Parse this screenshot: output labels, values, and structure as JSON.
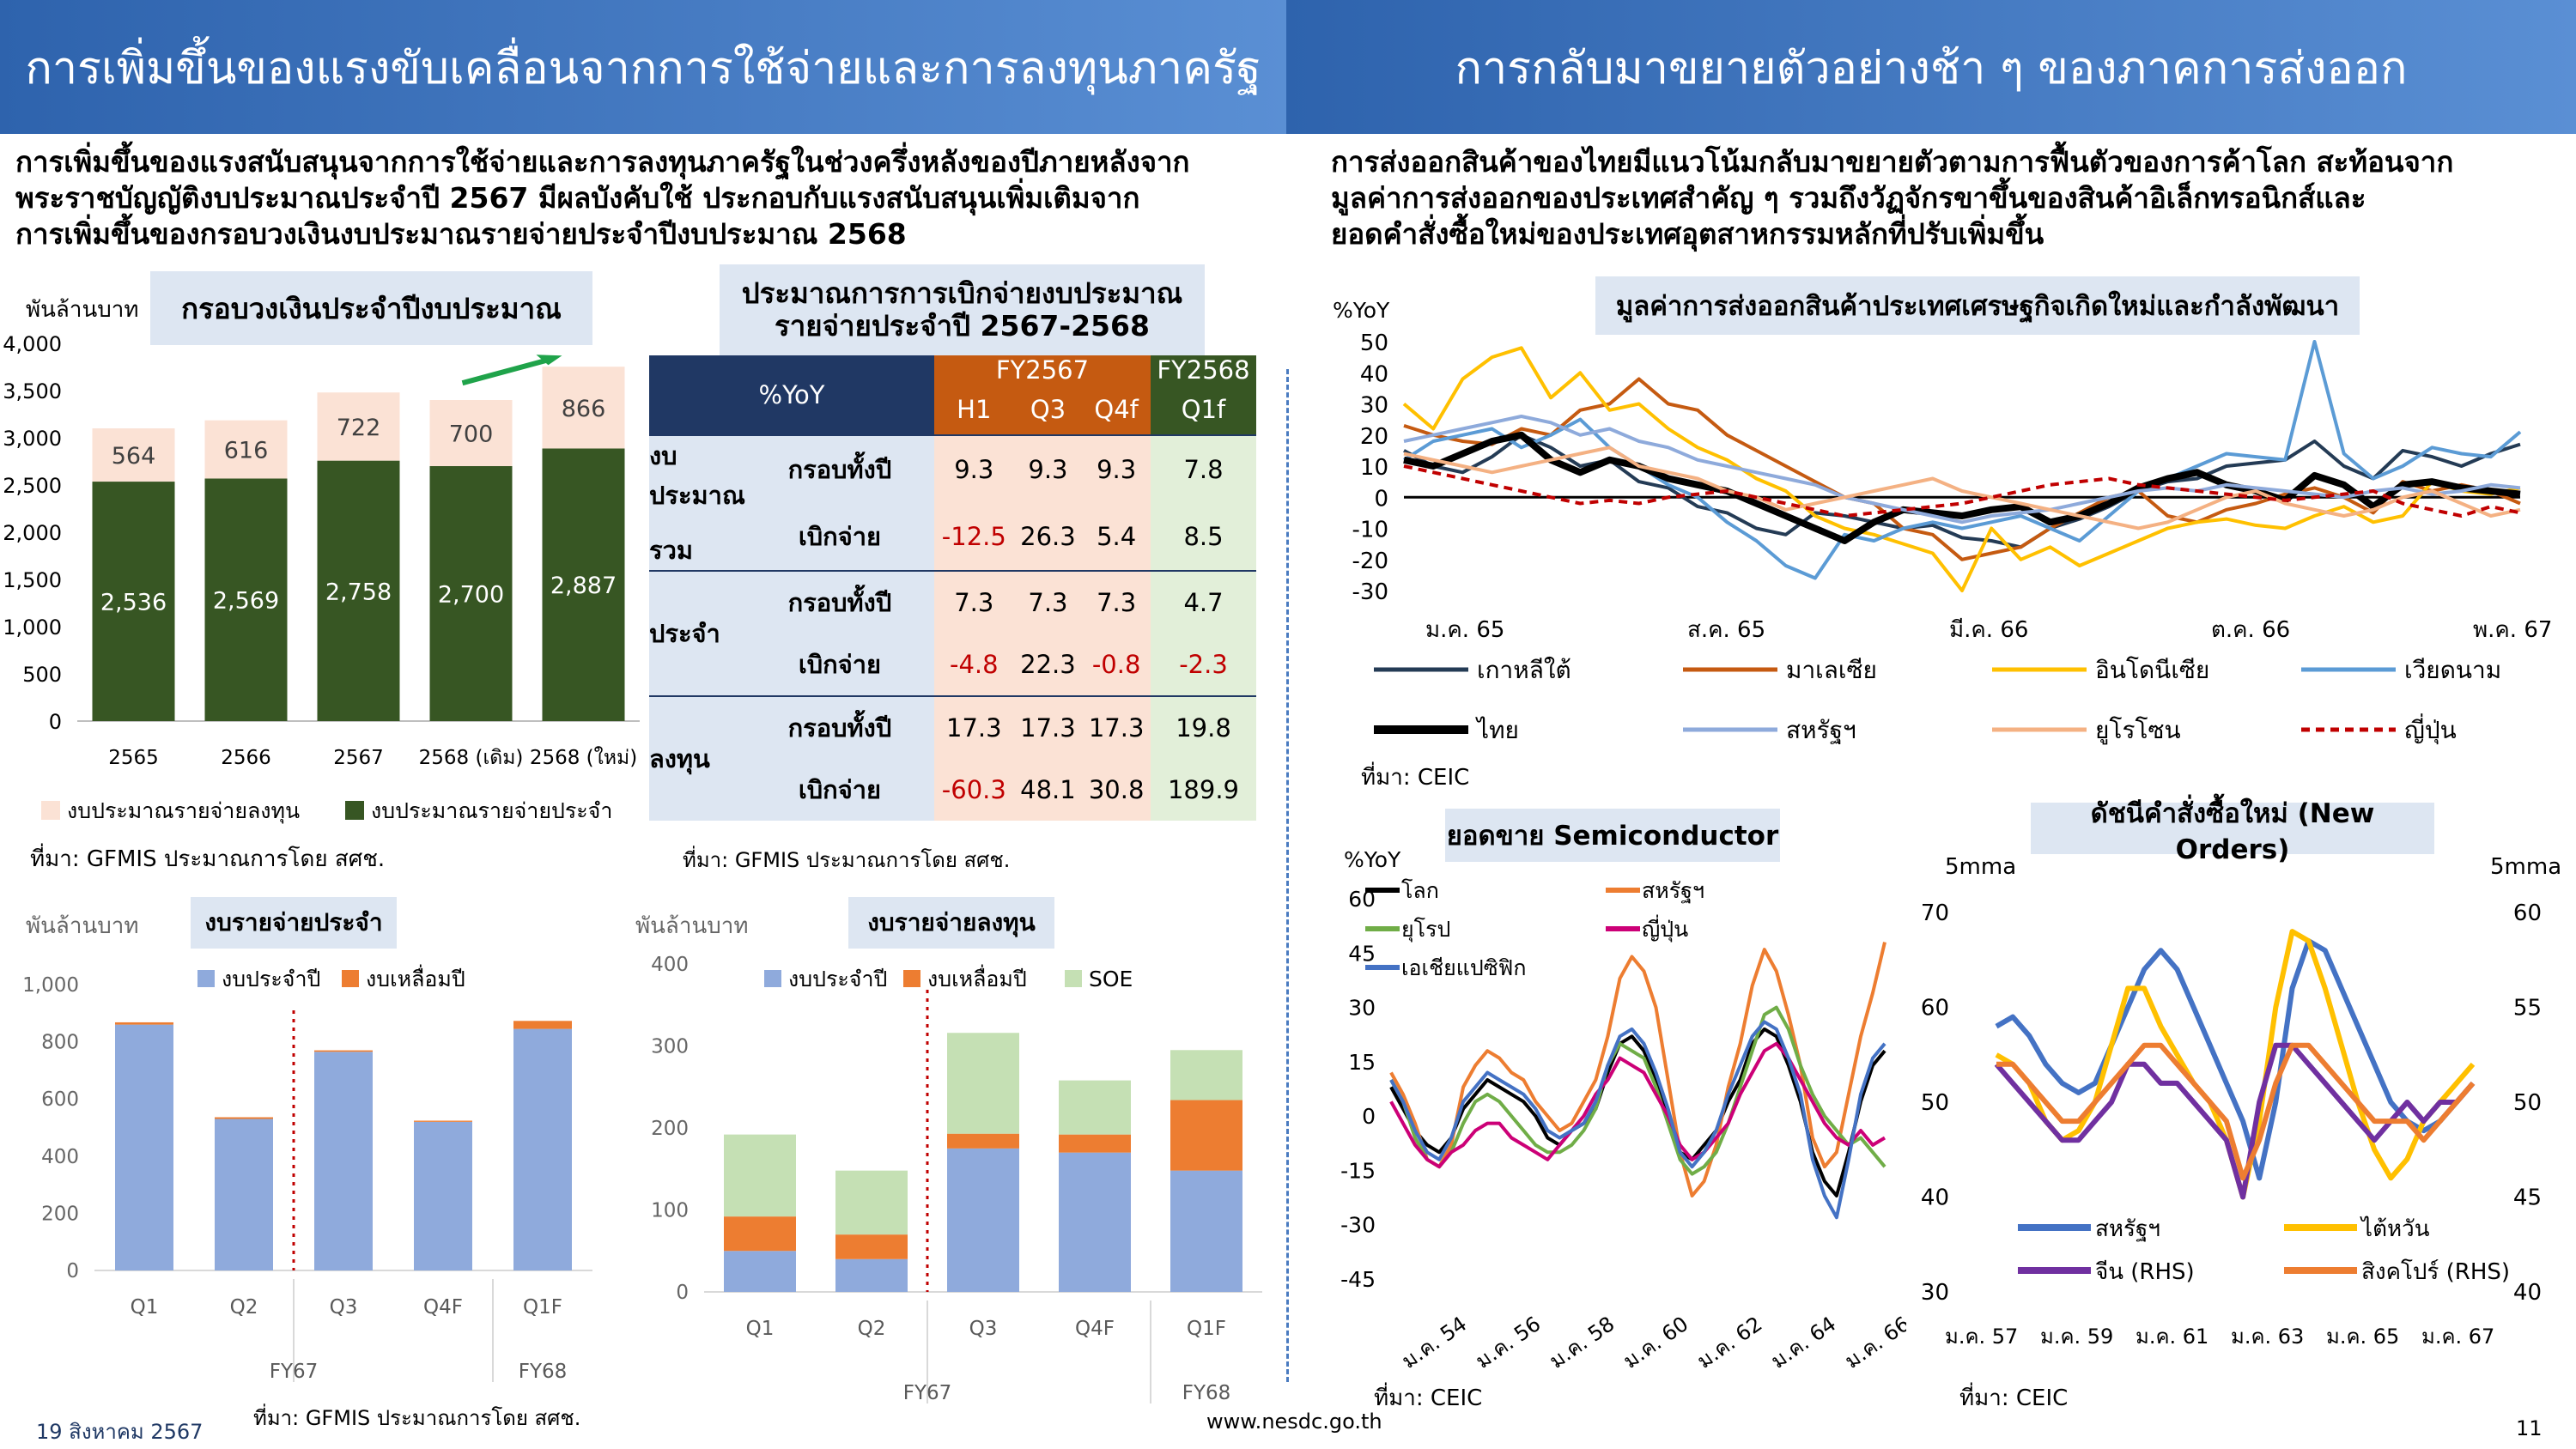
{
  "header": {
    "left_title": "การเพิ่มขึ้นของแรงขับเคลื่อนจากการใช้จ่ายและการลงทุนภาครัฐ",
    "right_title": "การกลับมาขยายตัวอย่างช้า ๆ ของภาคการส่งออก"
  },
  "left_paragraph": [
    "การเพิ่มขึ้นของแรงสนับสนุนจากการใช้จ่ายและการลงทุนภาครัฐในช่วงครึ่งหลังของปีภายหลังจาก",
    "พระราชบัญญัติงบประมาณประจำปี 2567 มีผลบังคับใช้ ประกอบกับแรงสนับสนุนเพิ่มเติมจาก",
    "การเพิ่มขึ้นของกรอบวงเงินงบประมาณรายจ่ายประจำปีงบประมาณ 2568"
  ],
  "right_paragraph": [
    "การส่งออกสินค้าของไทยมีแนวโน้มกลับมาขยายตัวตามการฟื้นตัวของการค้าโลก สะท้อนจาก",
    "มูลค่าการส่งออกของประเทศสำคัญ ๆ รวมถึงวัฏจักรขาขึ้นของสินค้าอิเล็กทรอนิกส์และ",
    "ยอดคำสั่งซื้อใหม่ของประเทศอุตสาหกรรมหลักที่ปรับเพิ่มขึ้น"
  ],
  "budget_chart": {
    "unit": "พันล้านบาท",
    "title": "กรอบวงเงินประจำปีงบประมาณ",
    "source": "ที่มา: GFMIS ประมาณการโดย สศช.",
    "legend_capital": "งบประมาณรายจ่ายลงทุน",
    "legend_current": "งบประมาณรายจ่ายประจำ",
    "y_ticks": [
      "0",
      "500",
      "1,000",
      "1,500",
      "2,000",
      "2,500",
      "3,000",
      "3,500",
      "4,000"
    ],
    "categories": [
      "2565",
      "2566",
      "2567",
      "2568 (เดิม)",
      "2568 (ใหม่)"
    ],
    "current": [
      2536,
      2569,
      2758,
      2700,
      2887
    ],
    "capital": [
      564,
      616,
      722,
      700,
      866
    ],
    "current_labels": [
      "2,536",
      "2,569",
      "2,758",
      "2,700",
      "2,887"
    ],
    "capital_labels": [
      "564",
      "616",
      "722",
      "700",
      "866"
    ],
    "colors": {
      "current": "#375623",
      "capital": "#fbe2d5",
      "arrow": "#1fa34a"
    }
  },
  "disbursement_table": {
    "title_line1": "ประมาณการการเบิกจ่ายงบประมาณ",
    "title_line2": "รายจ่ายประจำปี 2567-2568",
    "head_yoy": "%YoY",
    "fy67": "FY2567",
    "fy68": "FY2568",
    "periods": [
      "H1",
      "Q3",
      "Q4f",
      "Q1f"
    ],
    "groups": [
      {
        "name1": "งบประมาณ",
        "name2": "รวม",
        "rows": [
          {
            "label": "กรอบทั้งปี",
            "vals": [
              "9.3",
              "9.3",
              "9.3",
              "7.8"
            ]
          },
          {
            "label": "เบิกจ่าย",
            "vals": [
              "-12.5",
              "26.3",
              "5.4",
              "8.5"
            ]
          }
        ]
      },
      {
        "name1": "ประจำ",
        "name2": "",
        "rows": [
          {
            "label": "กรอบทั้งปี",
            "vals": [
              "7.3",
              "7.3",
              "7.3",
              "4.7"
            ]
          },
          {
            "label": "เบิกจ่าย",
            "vals": [
              "-4.8",
              "22.3",
              "-0.8",
              "-2.3"
            ]
          }
        ]
      },
      {
        "name1": "ลงทุน",
        "name2": "",
        "rows": [
          {
            "label": "กรอบทั้งปี",
            "vals": [
              "17.3",
              "17.3",
              "17.3",
              "19.8"
            ]
          },
          {
            "label": "เบิกจ่าย",
            "vals": [
              "-60.3",
              "48.1",
              "30.8",
              "189.9"
            ]
          }
        ]
      }
    ],
    "source": "ที่มา: GFMIS ประมาณการโดย สศช."
  },
  "current_exp_chart": {
    "unit": "พันล้านบาท",
    "title": "งบรายจ่ายประจำ",
    "legend": [
      "งบประจำปี",
      "งบเหลื่อมปี"
    ],
    "y_ticks": [
      "0",
      "200",
      "400",
      "600",
      "800",
      "1,000"
    ],
    "categories": [
      "Q1",
      "Q2",
      "Q3",
      "Q4F",
      "Q1F"
    ],
    "fy_labels": [
      "FY67",
      "FY68"
    ],
    "annual": [
      860,
      530,
      765,
      520,
      845
    ],
    "carry": [
      8,
      6,
      5,
      4,
      28
    ],
    "colors": {
      "annual": "#8faadc",
      "carry": "#ed7d31"
    }
  },
  "capital_exp_chart": {
    "unit": "พันล้านบาท",
    "title": "งบรายจ่ายลงทุน",
    "legend": [
      "งบประจำปี",
      "งบเหลื่อมปี",
      "SOE"
    ],
    "y_ticks": [
      "0",
      "100",
      "200",
      "300",
      "400"
    ],
    "categories": [
      "Q1",
      "Q2",
      "Q3",
      "Q4F",
      "Q1F"
    ],
    "fy_labels": [
      "FY67",
      "FY68"
    ],
    "annual": [
      50,
      40,
      175,
      170,
      148
    ],
    "carry": [
      42,
      30,
      18,
      22,
      86
    ],
    "soe": [
      100,
      78,
      123,
      66,
      61
    ],
    "colors": {
      "annual": "#8faadc",
      "carry": "#ed7d31",
      "soe": "#c5e0b4"
    }
  },
  "export_chart": {
    "title": "มูลค่าการส่งออกสินค้าประเทศเศรษฐกิจเกิดใหม่และกำลังพัฒนา",
    "unit": "%YoY",
    "y_ticks": [
      "50",
      "40",
      "30",
      "20",
      "10",
      "0",
      "-10",
      "-20",
      "-30"
    ],
    "x_ticks": [
      "ม.ค. 65",
      "ส.ค. 65",
      "มี.ค. 66",
      "ต.ค. 66",
      "พ.ค. 67"
    ],
    "source": "ที่มา: CEIC",
    "series": [
      {
        "name": "เกาหลีใต้",
        "color": "#243b55",
        "values": [
          15,
          10,
          8,
          13,
          20,
          16,
          10,
          12,
          5,
          3,
          -3,
          -5,
          -10,
          -12,
          -5,
          -6,
          -8,
          -10,
          -9,
          -13,
          -14,
          -16,
          -10,
          -7,
          -3,
          2,
          5,
          6,
          10,
          11,
          12,
          18,
          10,
          6,
          15,
          13,
          10,
          14,
          17
        ]
      },
      {
        "name": "มาเลเซีย",
        "color": "#c55a11",
        "values": [
          23,
          20,
          18,
          17,
          22,
          20,
          28,
          30,
          38,
          30,
          28,
          20,
          15,
          10,
          5,
          0,
          -2,
          -10,
          -12,
          -20,
          -18,
          -16,
          -10,
          -5,
          0,
          2,
          -6,
          -8,
          -4,
          -2,
          1,
          3,
          0,
          -5,
          5,
          2,
          4,
          2,
          -2
        ]
      },
      {
        "name": "อินโดนีเซีย",
        "color": "#ffc000",
        "values": [
          30,
          22,
          38,
          45,
          48,
          32,
          40,
          28,
          30,
          22,
          16,
          12,
          6,
          2,
          -6,
          -10,
          -12,
          -15,
          -18,
          -30,
          -10,
          -20,
          -16,
          -22,
          -18,
          -14,
          -10,
          -8,
          -7,
          -9,
          -10,
          -6,
          -3,
          -8,
          -6,
          5,
          2,
          1,
          3
        ]
      },
      {
        "name": "เวียดนาม",
        "color": "#5b9bd5",
        "values": [
          12,
          18,
          20,
          22,
          16,
          20,
          25,
          16,
          10,
          4,
          0,
          -8,
          -14,
          -22,
          -26,
          -12,
          -14,
          -10,
          -8,
          -10,
          -8,
          -6,
          -10,
          -14,
          -6,
          2,
          6,
          10,
          14,
          13,
          12,
          50,
          14,
          6,
          10,
          16,
          14,
          13,
          21
        ]
      },
      {
        "name": "ไทย",
        "color": "#000000",
        "values": [
          12,
          10,
          14,
          18,
          20,
          12,
          8,
          12,
          10,
          6,
          4,
          2,
          -2,
          -6,
          -10,
          -14,
          -8,
          -4,
          -5,
          -6,
          -4,
          -3,
          -8,
          -6,
          -2,
          3,
          6,
          8,
          4,
          2,
          -1,
          7,
          4,
          -3,
          4,
          5,
          3,
          2,
          1
        ]
      },
      {
        "name": "สหรัฐฯ",
        "color": "#8eaadb",
        "values": [
          18,
          20,
          22,
          24,
          26,
          24,
          20,
          22,
          18,
          16,
          12,
          10,
          8,
          6,
          4,
          0,
          -2,
          -4,
          -6,
          -8,
          -6,
          -5,
          -4,
          -2,
          0,
          2,
          3,
          2,
          4,
          3,
          2,
          1,
          0,
          2,
          3,
          1,
          2,
          4,
          3
        ]
      },
      {
        "name": "ยูโรโซน",
        "color": "#f4b183",
        "values": [
          14,
          12,
          10,
          8,
          10,
          12,
          14,
          16,
          10,
          8,
          6,
          2,
          0,
          -4,
          -2,
          0,
          2,
          4,
          6,
          2,
          0,
          -2,
          -4,
          -6,
          -8,
          -10,
          -8,
          -4,
          0,
          2,
          -2,
          -4,
          -6,
          -4,
          0,
          2,
          -2,
          -6,
          -4
        ]
      },
      {
        "name": "ญี่ปุ่น",
        "color": "#c00000",
        "dash": true,
        "values": [
          10,
          8,
          6,
          4,
          2,
          0,
          -2,
          -1,
          -2,
          0,
          1,
          2,
          0,
          -2,
          -4,
          -6,
          -5,
          -4,
          -3,
          -2,
          0,
          2,
          4,
          5,
          6,
          4,
          3,
          2,
          1,
          0,
          -1,
          0,
          1,
          2,
          -2,
          -4,
          -6,
          -3,
          -5
        ]
      }
    ]
  },
  "semi_chart": {
    "title": "ยอดขาย Semiconductor",
    "unit": "%YoY",
    "y_ticks": [
      "60",
      "45",
      "30",
      "15",
      "0",
      "-15",
      "-30",
      "-45"
    ],
    "x_ticks": [
      "ม.ค. 54",
      "ม.ค. 56",
      "ม.ค. 58",
      "ม.ค. 60",
      "ม.ค. 62",
      "ม.ค. 64",
      "ม.ค. 66"
    ],
    "source": "ที่มา: CEIC",
    "series": [
      {
        "name": "โลก",
        "color": "#000000",
        "values": [
          8,
          2,
          -4,
          -8,
          -10,
          -6,
          2,
          6,
          10,
          8,
          6,
          4,
          0,
          -6,
          -8,
          -4,
          -2,
          2,
          12,
          20,
          22,
          18,
          10,
          0,
          -10,
          -12,
          -8,
          -4,
          4,
          10,
          20,
          24,
          22,
          14,
          4,
          -10,
          -18,
          -22,
          -10,
          4,
          14,
          18
        ]
      },
      {
        "name": "สหรัฐฯ",
        "color": "#ed7d31",
        "values": [
          12,
          6,
          -2,
          -12,
          -14,
          -8,
          8,
          14,
          18,
          16,
          12,
          10,
          4,
          0,
          -4,
          -2,
          4,
          10,
          22,
          38,
          44,
          40,
          30,
          10,
          -10,
          -22,
          -18,
          -8,
          8,
          20,
          36,
          46,
          40,
          28,
          14,
          -6,
          -14,
          -10,
          6,
          22,
          34,
          48
        ]
      },
      {
        "name": "ยุโรป",
        "color": "#70ad47",
        "values": [
          10,
          4,
          -6,
          -12,
          -14,
          -10,
          -2,
          4,
          6,
          4,
          0,
          -4,
          -8,
          -10,
          -10,
          -8,
          -4,
          2,
          14,
          20,
          18,
          16,
          8,
          -2,
          -12,
          -16,
          -14,
          -10,
          -2,
          8,
          18,
          28,
          30,
          24,
          14,
          6,
          0,
          -4,
          -8,
          -6,
          -10,
          -14
        ]
      },
      {
        "name": "ญี่ปุ่น",
        "color": "#cc0077",
        "values": [
          4,
          -2,
          -8,
          -12,
          -14,
          -10,
          -8,
          -4,
          -2,
          -2,
          -6,
          -8,
          -10,
          -12,
          -8,
          -4,
          0,
          6,
          10,
          16,
          14,
          12,
          6,
          0,
          -8,
          -12,
          -10,
          -6,
          -2,
          6,
          12,
          18,
          20,
          16,
          10,
          4,
          -2,
          -6,
          -8,
          -4,
          -8,
          -6
        ]
      },
      {
        "name": "เอเชียแปซิฟิก",
        "color": "#4472c4",
        "values": [
          10,
          4,
          -4,
          -10,
          -12,
          -6,
          4,
          8,
          12,
          10,
          8,
          6,
          2,
          -4,
          -6,
          -4,
          -2,
          4,
          14,
          22,
          24,
          20,
          12,
          2,
          -10,
          -14,
          -10,
          -4,
          6,
          14,
          22,
          26,
          24,
          16,
          6,
          -12,
          -22,
          -28,
          -12,
          6,
          16,
          20
        ]
      }
    ]
  },
  "orders_chart": {
    "title": "ดัชนีคำสั่งซื้อใหม่ (New Orders)",
    "unit_left": "5mma",
    "unit_right": "5mma",
    "y_left": [
      "70",
      "60",
      "50",
      "40",
      "30"
    ],
    "y_right": [
      "60",
      "55",
      "50",
      "45",
      "40"
    ],
    "x_ticks": [
      "ม.ค. 57",
      "ม.ค. 59",
      "ม.ค. 61",
      "ม.ค. 63",
      "ม.ค. 65",
      "ม.ค. 67"
    ],
    "source": "ที่มา: CEIC",
    "series": [
      {
        "name": "สหรัฐฯ",
        "color": "#4472c4",
        "axis": "left",
        "values": [
          58,
          59,
          57,
          54,
          52,
          51,
          52,
          56,
          60,
          64,
          66,
          64,
          60,
          56,
          52,
          48,
          42,
          50,
          62,
          67,
          66,
          62,
          58,
          54,
          50,
          48,
          47,
          48,
          50,
          52
        ]
      },
      {
        "name": "ไต้หวัน",
        "color": "#ffc000",
        "axis": "left",
        "values": [
          55,
          54,
          52,
          48,
          46,
          47,
          50,
          56,
          62,
          62,
          58,
          55,
          52,
          50,
          46,
          40,
          48,
          60,
          68,
          67,
          62,
          56,
          50,
          45,
          42,
          44,
          48,
          50,
          52,
          54
        ]
      },
      {
        "name": "จีน (RHS)",
        "color": "#7030a0",
        "axis": "right",
        "values": [
          52,
          51,
          50,
          49,
          48,
          48,
          49,
          50,
          52,
          52,
          51,
          51,
          50,
          49,
          48,
          45,
          50,
          53,
          53,
          52,
          51,
          50,
          49,
          48,
          49,
          50,
          49,
          50,
          50,
          51
        ]
      },
      {
        "name": "สิงคโปร์  (RHS)",
        "color": "#ed7d31",
        "axis": "right",
        "values": [
          52,
          52,
          51,
          50,
          49,
          49,
          50,
          51,
          52,
          53,
          53,
          52,
          51,
          50,
          49,
          46,
          48,
          51,
          53,
          53,
          52,
          51,
          50,
          49,
          49,
          49,
          48,
          49,
          50,
          51
        ]
      }
    ]
  },
  "footer": {
    "date": "19 สิงหาคม 2567",
    "url": "www.nesdc.go.th",
    "page": "11"
  }
}
